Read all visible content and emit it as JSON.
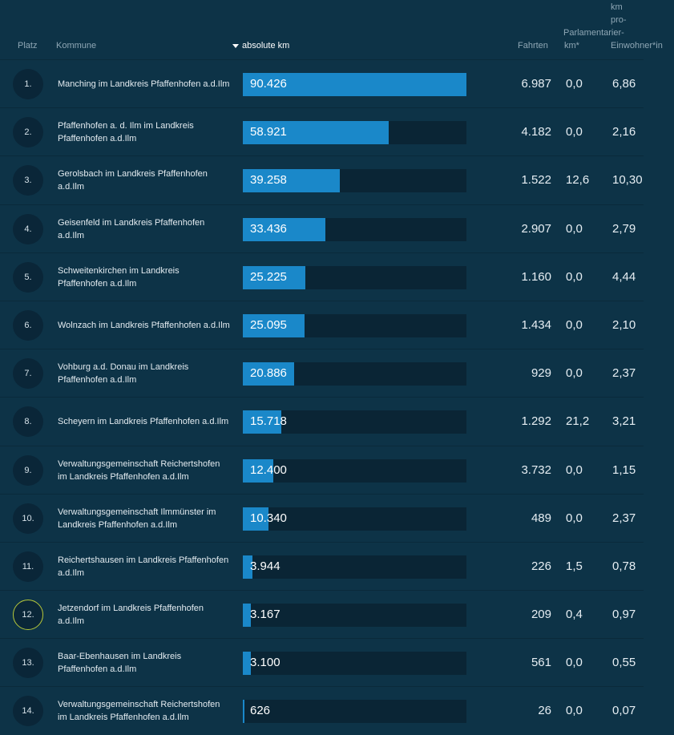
{
  "header": {
    "platz": "Platz",
    "kommune": "Kommune",
    "absolute_km": "absolute km",
    "fahrten": "Fahrten",
    "parlamentarier_line1": "Parlamentarier-",
    "parlamentarier_line2": "km*",
    "pro_line1": "km",
    "pro_line2": "pro-",
    "pro_line3": "Einwohner*in",
    "sort_icon": "sort-descending-icon"
  },
  "colors": {
    "background": "#0d3347",
    "bar": "#1a88c9",
    "track": "#0a2535",
    "highlight": "#b7c83a"
  },
  "max_km": 90426,
  "rows": [
    {
      "rank": "1.",
      "name": "Manching im Landkreis Pfaffenhofen a.d.Ilm",
      "km_label": "90.426",
      "km": 90426,
      "fahrten": "6.987",
      "parl": "0,0",
      "pro": "6,86"
    },
    {
      "rank": "2.",
      "name": "Pfaffenhofen a. d. Ilm im Landkreis Pfaffenhofen a.d.Ilm",
      "km_label": "58.921",
      "km": 58921,
      "fahrten": "4.182",
      "parl": "0,0",
      "pro": "2,16"
    },
    {
      "rank": "3.",
      "name": "Gerolsbach im Landkreis Pfaffenhofen a.d.Ilm",
      "km_label": "39.258",
      "km": 39258,
      "fahrten": "1.522",
      "parl": "12,6",
      "pro": "10,30"
    },
    {
      "rank": "4.",
      "name": "Geisenfeld im Landkreis Pfaffenhofen a.d.Ilm",
      "km_label": "33.436",
      "km": 33436,
      "fahrten": "2.907",
      "parl": "0,0",
      "pro": "2,79"
    },
    {
      "rank": "5.",
      "name": "Schweitenkirchen im Landkreis Pfaffenhofen a.d.Ilm",
      "km_label": "25.225",
      "km": 25225,
      "fahrten": "1.160",
      "parl": "0,0",
      "pro": "4,44"
    },
    {
      "rank": "6.",
      "name": "Wolnzach im Landkreis Pfaffenhofen a.d.Ilm",
      "km_label": "25.095",
      "km": 25095,
      "fahrten": "1.434",
      "parl": "0,0",
      "pro": "2,10"
    },
    {
      "rank": "7.",
      "name": "Vohburg a.d. Donau im Landkreis Pfaffenhofen a.d.Ilm",
      "km_label": "20.886",
      "km": 20886,
      "fahrten": "929",
      "parl": "0,0",
      "pro": "2,37"
    },
    {
      "rank": "8.",
      "name": "Scheyern im Landkreis Pfaffenhofen a.d.Ilm",
      "km_label": "15.718",
      "km": 15718,
      "fahrten": "1.292",
      "parl": "21,2",
      "pro": "3,21"
    },
    {
      "rank": "9.",
      "name": "Verwaltungsgemeinschaft Reichertshofen im Landkreis Pfaffenhofen a.d.Ilm",
      "km_label": "12.400",
      "km": 12400,
      "fahrten": "3.732",
      "parl": "0,0",
      "pro": "1,15"
    },
    {
      "rank": "10.",
      "name": "Verwaltungsgemeinschaft Ilmmünster im Landkreis Pfaffenhofen a.d.Ilm",
      "km_label": "10.340",
      "km": 10340,
      "fahrten": "489",
      "parl": "0,0",
      "pro": "2,37"
    },
    {
      "rank": "11.",
      "name": "Reichertshausen im Landkreis Pfaffenhofen a.d.Ilm",
      "km_label": "3.944",
      "km": 3944,
      "fahrten": "226",
      "parl": "1,5",
      "pro": "0,78"
    },
    {
      "rank": "12.",
      "name": "Jetzendorf im Landkreis Pfaffenhofen a.d.Ilm",
      "km_label": "3.167",
      "km": 3167,
      "fahrten": "209",
      "parl": "0,4",
      "pro": "0,97",
      "highlighted": true
    },
    {
      "rank": "13.",
      "name": "Baar-Ebenhausen im Landkreis Pfaffenhofen a.d.Ilm",
      "km_label": "3.100",
      "km": 3100,
      "fahrten": "561",
      "parl": "0,0",
      "pro": "0,55"
    },
    {
      "rank": "14.",
      "name": "Verwaltungsgemeinschaft Reichertshofen im Landkreis Pfaffenhofen a.d.Ilm",
      "km_label": "626",
      "km": 626,
      "fahrten": "26",
      "parl": "0,0",
      "pro": "0,07"
    }
  ]
}
